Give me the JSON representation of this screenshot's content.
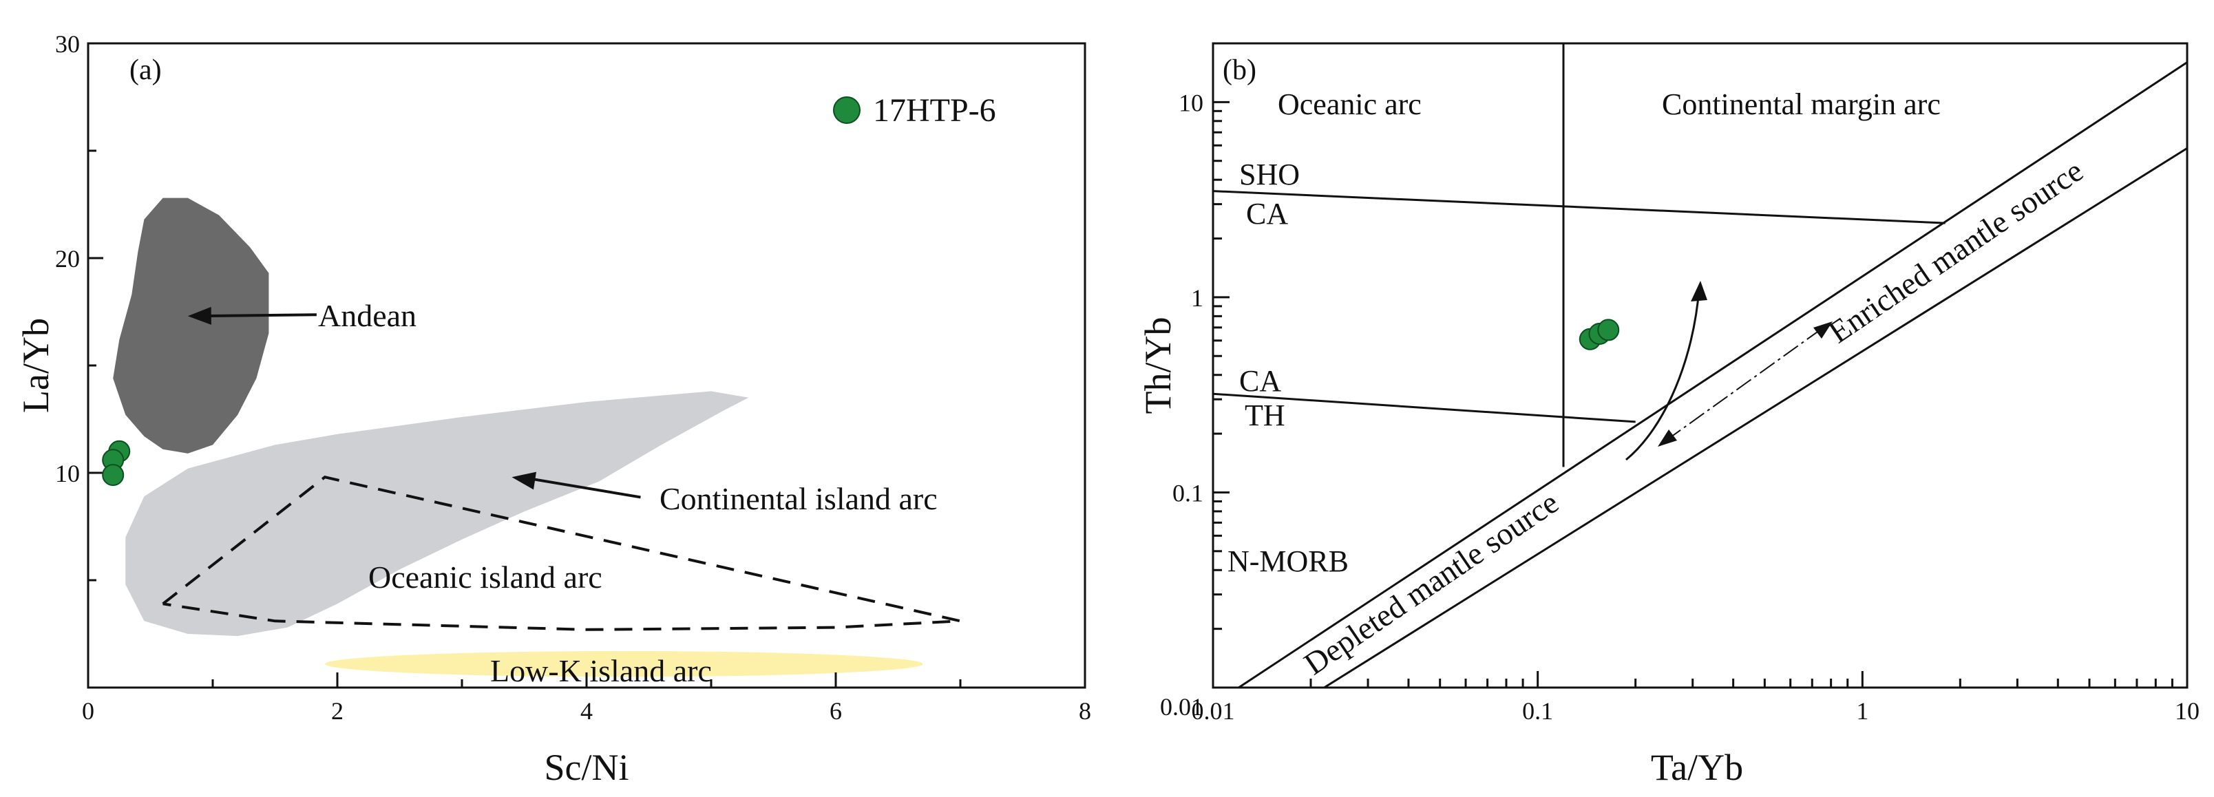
{
  "chart_data": [
    {
      "panel": "(a)",
      "type": "scatter",
      "xlabel": "Sc/Ni",
      "ylabel": "La/Yb",
      "xlim": [
        0,
        8
      ],
      "ylim": [
        0,
        30
      ],
      "x_ticks": [
        0,
        2,
        4,
        6,
        8
      ],
      "y_ticks": [
        10,
        20,
        30
      ],
      "grid": false,
      "legend": {
        "label": "17HTP-6",
        "color": "#1f8a3b",
        "position": "top-right"
      },
      "series": [
        {
          "name": "17HTP-6",
          "color": "#1f8a3b",
          "points": [
            [
              0.25,
              11.0
            ],
            [
              0.2,
              10.6
            ],
            [
              0.2,
              9.9
            ]
          ]
        }
      ],
      "fields": [
        {
          "name": "Andean",
          "fill": "#6a6a6a",
          "style": "filled",
          "outline": [
            [
              0.6,
              22.8
            ],
            [
              0.8,
              22.8
            ],
            [
              1.05,
              22.0
            ],
            [
              1.3,
              20.5
            ],
            [
              1.45,
              19.3
            ],
            [
              1.45,
              16.5
            ],
            [
              1.35,
              14.4
            ],
            [
              1.2,
              12.7
            ],
            [
              1.0,
              11.3
            ],
            [
              0.8,
              10.9
            ],
            [
              0.6,
              11.1
            ],
            [
              0.45,
              11.7
            ],
            [
              0.3,
              12.7
            ],
            [
              0.2,
              14.4
            ],
            [
              0.25,
              16.2
            ],
            [
              0.35,
              18.3
            ],
            [
              0.4,
              20.3
            ],
            [
              0.45,
              21.8
            ]
          ]
        },
        {
          "name": "Continental island arc",
          "fill": "#cfd0d3",
          "style": "filled",
          "outline": [
            [
              0.45,
              8.9
            ],
            [
              0.8,
              10.2
            ],
            [
              1.5,
              11.3
            ],
            [
              2.0,
              11.8
            ],
            [
              3.0,
              12.6
            ],
            [
              4.0,
              13.3
            ],
            [
              5.0,
              13.8
            ],
            [
              5.3,
              13.5
            ],
            [
              5.1,
              12.9
            ],
            [
              4.6,
              11.3
            ],
            [
              4.1,
              9.6
            ],
            [
              3.5,
              8.2
            ],
            [
              3.0,
              6.9
            ],
            [
              2.5,
              5.5
            ],
            [
              2.0,
              3.9
            ],
            [
              1.6,
              2.8
            ],
            [
              1.2,
              2.4
            ],
            [
              0.8,
              2.5
            ],
            [
              0.45,
              3.1
            ],
            [
              0.3,
              4.8
            ],
            [
              0.3,
              7.0
            ]
          ]
        },
        {
          "name": "Oceanic island arc",
          "fill": "none",
          "style": "dashed",
          "outline": [
            [
              0.6,
              3.9
            ],
            [
              1.9,
              9.8
            ],
            [
              7.0,
              3.1
            ],
            [
              6.0,
              2.8
            ],
            [
              4.0,
              2.7
            ],
            [
              1.5,
              3.1
            ],
            [
              0.6,
              3.9
            ]
          ]
        },
        {
          "name": "Low-K island arc",
          "fill": "#fdf1a9",
          "style": "filled",
          "ellipse": {
            "cx": 4.3,
            "cy": 1.1,
            "rx": 2.4,
            "ry": 0.6
          }
        }
      ],
      "annotations": [
        {
          "text": "Andean",
          "x": 1.9,
          "y": 17.3,
          "arrow_to": [
            0.8,
            17.3
          ]
        },
        {
          "text": "Continental island arc",
          "x": 4.5,
          "y": 8.8,
          "arrow_to": [
            3.4,
            9.8
          ]
        },
        {
          "text": "Oceanic island arc",
          "x": 2.3,
          "y": 5.0
        },
        {
          "text": "Low-K island arc",
          "x": 3.2,
          "y": 0.5
        }
      ]
    },
    {
      "panel": "(b)",
      "type": "scatter",
      "xlabel": "Ta/Yb",
      "ylabel": "Th/Yb",
      "xscale": "log",
      "yscale": "log",
      "xlim": [
        0.01,
        10
      ],
      "ylim": [
        0.01,
        20
      ],
      "x_ticks": [
        0.01,
        0.1,
        1,
        10
      ],
      "y_ticks": [
        0.1,
        1,
        10
      ],
      "x_tick_labels": [
        "0.01",
        "0.1",
        "1",
        "10"
      ],
      "y_tick_labels": [
        "0.1",
        "1",
        "10"
      ],
      "grid": false,
      "series": [
        {
          "name": "17HTP-6",
          "color": "#1f8a3b",
          "points": [
            [
              0.145,
              0.61
            ],
            [
              0.155,
              0.65
            ],
            [
              0.165,
              0.68
            ]
          ]
        }
      ],
      "lines": [
        {
          "name": "mantle array lower bound",
          "points": [
            [
              0.022,
              0.01
            ],
            [
              10,
              5.8
            ]
          ]
        },
        {
          "name": "mantle array upper bound",
          "points": [
            [
              0.012,
              0.01
            ],
            [
              10,
              16.0
            ]
          ]
        },
        {
          "name": "oceanic / continental divide",
          "points": [
            [
              0.12,
              0.135
            ],
            [
              0.12,
              20.0
            ]
          ]
        },
        {
          "name": "SHO / CA boundary",
          "points": [
            [
              0.01,
              3.5
            ],
            [
              1.8,
              2.4
            ]
          ]
        },
        {
          "name": "CA / TH boundary",
          "points": [
            [
              0.01,
              0.32
            ],
            [
              0.2,
              0.23
            ]
          ]
        }
      ],
      "labels": {
        "oceanic_arc": "Oceanic arc",
        "continental_arc": "Continental margin arc",
        "sho": "SHO",
        "ca_upper": "CA",
        "ca_lower": "CA",
        "th": "TH",
        "nmorb": "N-MORB",
        "depleted": "Depleted mantle source",
        "enriched": "Enriched mantle source"
      }
    }
  ]
}
